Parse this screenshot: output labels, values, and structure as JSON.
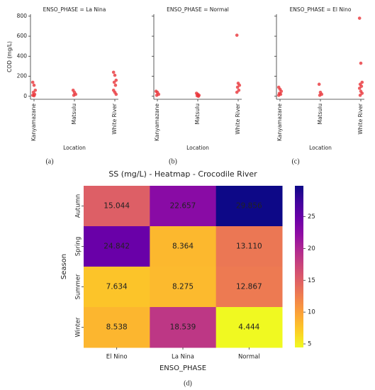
{
  "chart_data": [
    {
      "type": "strip",
      "title": "ENSO_PHASE = La Nina",
      "xlabel": "Location",
      "ylabel": "COD (mg/L)",
      "caption": "(a)",
      "categories": [
        "Kanyamazane",
        "Matsulu",
        "White River"
      ],
      "values": [
        [
          140,
          110,
          60,
          40,
          20,
          10,
          5
        ],
        [
          60,
          40,
          20,
          10
        ],
        [
          240,
          210,
          160,
          140,
          110,
          60,
          40,
          20
        ]
      ],
      "color": "#e8343a",
      "ylim": [
        -30,
        820
      ],
      "yticks": [
        0,
        200,
        400,
        600,
        800
      ]
    },
    {
      "type": "strip",
      "title": "ENSO_PHASE = Normal",
      "xlabel": "Location",
      "caption": "(b)",
      "categories": [
        "Kanyamazane",
        "Matsulu",
        "White River"
      ],
      "values": [
        [
          50,
          40,
          20,
          10
        ],
        [
          30,
          20,
          10,
          5,
          0
        ],
        [
          610,
          130,
          110,
          90,
          60,
          40
        ]
      ],
      "color": "#e8343a",
      "ylim": [
        -30,
        820
      ]
    },
    {
      "type": "strip",
      "title": "ENSO_PHASE = El Nino",
      "xlabel": "Location",
      "caption": "(c)",
      "categories": [
        "Kanyamazane",
        "Matsulu",
        "White River"
      ],
      "values": [
        [
          90,
          70,
          50,
          30,
          20,
          10
        ],
        [
          120,
          40,
          20,
          10
        ],
        [
          780,
          330,
          140,
          120,
          100,
          80,
          50,
          30,
          10
        ]
      ],
      "color": "#e8343a",
      "ylim": [
        -30,
        820
      ]
    },
    {
      "type": "heatmap",
      "title": "SS (mg/L) - Heatmap - Crocodile River",
      "xlabel": "ENSO_PHASE",
      "ylabel": "Season",
      "caption": "(d)",
      "categories": [
        "El Nino",
        "La Nina",
        "Normal"
      ],
      "y_categories": [
        "Autumn",
        "Spring",
        "Summer",
        "Winter"
      ],
      "values": [
        [
          15.044,
          22.657,
          29.856
        ],
        [
          24.842,
          8.364,
          13.11
        ],
        [
          7.634,
          8.275,
          12.867
        ],
        [
          8.538,
          18.539,
          4.444
        ]
      ],
      "value_labels": [
        [
          "15.044",
          "22.657",
          "29.856"
        ],
        [
          "24.842",
          "8.364",
          "13.110"
        ],
        [
          "7.634",
          "8.275",
          "12.867"
        ],
        [
          "8.538",
          "18.539",
          "4.444"
        ]
      ],
      "colormap": "plasma_r",
      "clim": [
        4.444,
        29.856
      ],
      "cticks": [
        5,
        10,
        15,
        20,
        25
      ]
    }
  ]
}
